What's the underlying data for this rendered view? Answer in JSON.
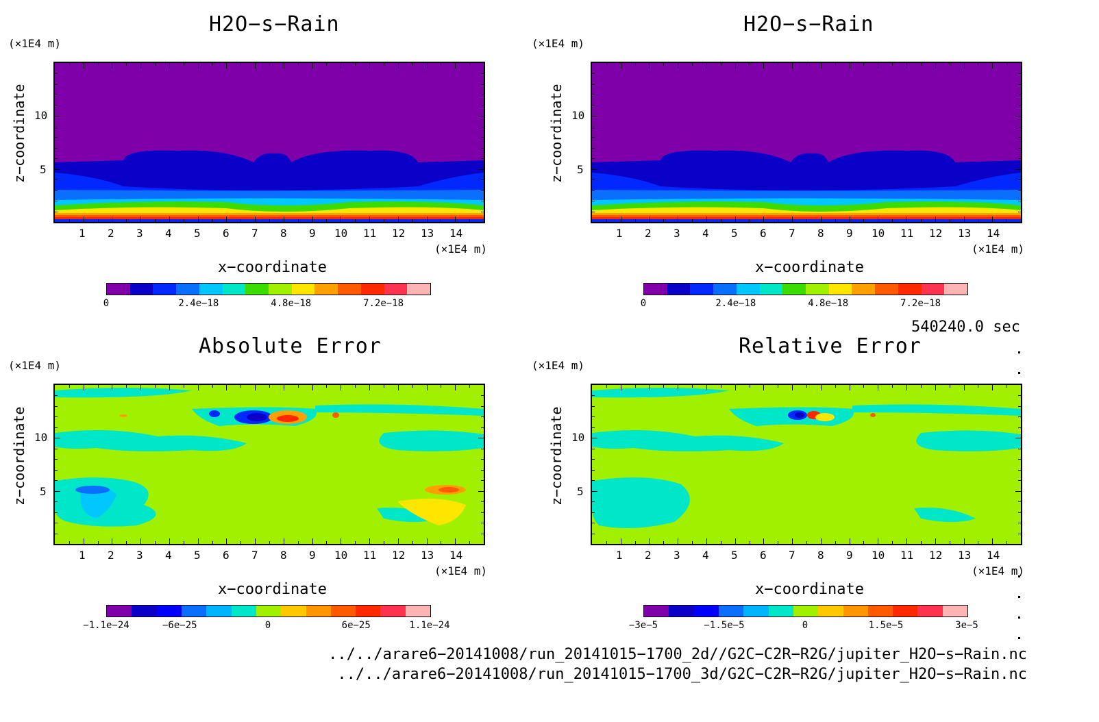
{
  "panels": [
    {
      "id": "top-left",
      "title": "H2O−s−Rain",
      "y_unit": "(×1E4 m)",
      "x_unit": "(×1E4 m)",
      "xlabel": "x−coordinate",
      "ylabel": "z−coordinate",
      "x_ticks": [
        "1",
        "2",
        "3",
        "4",
        "5",
        "6",
        "7",
        "8",
        "9",
        "10",
        "11",
        "12",
        "13",
        "14"
      ],
      "y_ticks": [
        "5",
        "10"
      ],
      "colorbar_labels": [
        "0",
        "2.4e−18",
        "4.8e−18",
        "7.2e−18"
      ]
    },
    {
      "id": "top-right",
      "title": "H2O−s−Rain",
      "y_unit": "(×1E4 m)",
      "x_unit": "(×1E4 m)",
      "xlabel": "x−coordinate",
      "ylabel": "z−coordinate",
      "x_ticks": [
        "1",
        "2",
        "3",
        "4",
        "5",
        "6",
        "7",
        "8",
        "9",
        "10",
        "11",
        "12",
        "13",
        "14"
      ],
      "y_ticks": [
        "5",
        "10"
      ],
      "colorbar_labels": [
        "0",
        "2.4e−18",
        "4.8e−18",
        "7.2e−18"
      ]
    },
    {
      "id": "bottom-left",
      "title": "Absolute Error",
      "y_unit": "(×1E4 m)",
      "x_unit": "(×1E4 m)",
      "xlabel": "x−coordinate",
      "ylabel": "z−coordinate",
      "x_ticks": [
        "1",
        "2",
        "3",
        "4",
        "5",
        "6",
        "7",
        "8",
        "9",
        "10",
        "11",
        "12",
        "13",
        "14"
      ],
      "y_ticks": [
        "5",
        "10"
      ],
      "colorbar_labels": [
        "−1.1e−24",
        "−6e−25",
        "0",
        "6e−25",
        "1.1e−24"
      ]
    },
    {
      "id": "bottom-right",
      "title": "Relative Error",
      "y_unit": "(×1E4 m)",
      "x_unit": "(×1E4 m)",
      "xlabel": "x−coordinate",
      "ylabel": "z−coordinate",
      "x_ticks": [
        "1",
        "2",
        "3",
        "4",
        "5",
        "6",
        "7",
        "8",
        "9",
        "10",
        "11",
        "12",
        "13",
        "14"
      ],
      "y_ticks": [
        "5",
        "10"
      ],
      "colorbar_labels": [
        "−3e−5",
        "−1.5e−5",
        "0",
        "1.5e−5",
        "3e−5"
      ]
    }
  ],
  "timestamp": "540240.0 sec",
  "files": [
    "../../arare6−20141008/run_20141015−1700_2d//G2C−C2R−R2G/jupiter_H2O−s−Rain.nc",
    "../../arare6−20141008/run_20141015−1700_3d/G2C−C2R−R2G/jupiter_H2O−s−Rain.nc"
  ],
  "chart_data": [
    {
      "type": "heatmap",
      "title": "H2O−s−Rain",
      "xlabel": "x−coordinate",
      "ylabel": "z−coordinate",
      "xlim": [
        0,
        15
      ],
      "ylim": [
        0,
        15
      ],
      "x_unit": "(×1E4 m)",
      "y_unit": "(×1E4 m)",
      "colorbar": [
        "#7f00a8",
        "#0a00c8",
        "#0028ff",
        "#0a6eff",
        "#00c8ff",
        "#00e6c8",
        "#3cdc00",
        "#a0f000",
        "#ffe600",
        "#ffa000",
        "#ff5a00",
        "#ff2800",
        "#ff3250",
        "#ffb4b4"
      ],
      "colorbar_ticks": [
        {
          "value": 0,
          "label": "0"
        },
        {
          "value": 2.4e-18,
          "label": "2.4e−18"
        },
        {
          "value": 4.8e-18,
          "label": "4.8e−18"
        },
        {
          "value": 7.2e-18,
          "label": "7.2e−18"
        }
      ],
      "colorbar_range": [
        0,
        8.4e-18
      ]
    },
    {
      "type": "heatmap",
      "title": "H2O−s−Rain",
      "xlabel": "x−coordinate",
      "ylabel": "z−coordinate",
      "xlim": [
        0,
        15
      ],
      "ylim": [
        0,
        15
      ],
      "colorbar_range": [
        0,
        8.4e-18
      ]
    },
    {
      "type": "heatmap",
      "title": "Absolute Error",
      "xlabel": "x−coordinate",
      "ylabel": "z−coordinate",
      "xlim": [
        0,
        15
      ],
      "ylim": [
        0,
        15
      ],
      "colorbar_ticks": [
        {
          "value": -1.1e-24,
          "label": "−1.1e−24"
        },
        {
          "value": -6e-25,
          "label": "−6e−25"
        },
        {
          "value": 0,
          "label": "0"
        },
        {
          "value": 6e-25,
          "label": "6e−25"
        },
        {
          "value": 1.1e-24,
          "label": "1.1e−24"
        }
      ],
      "colorbar_range": [
        -1.1e-24,
        1.1e-24
      ]
    },
    {
      "type": "heatmap",
      "title": "Relative Error",
      "xlabel": "x−coordinate",
      "ylabel": "z−coordinate",
      "xlim": [
        0,
        15
      ],
      "ylim": [
        0,
        15
      ],
      "colorbar_ticks": [
        {
          "value": -3e-05,
          "label": "−3e−5"
        },
        {
          "value": -1.5e-05,
          "label": "−1.5e−5"
        },
        {
          "value": 0,
          "label": "0"
        },
        {
          "value": 1.5e-05,
          "label": "1.5e−5"
        },
        {
          "value": 3e-05,
          "label": "3e−5"
        }
      ],
      "colorbar_range": [
        -3e-05,
        3e-05
      ]
    }
  ]
}
